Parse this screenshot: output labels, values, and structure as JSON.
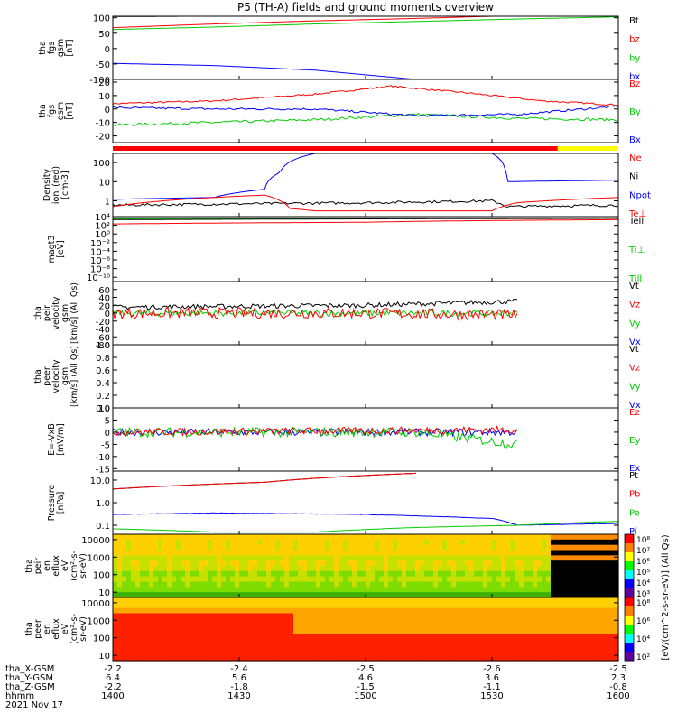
{
  "title": "P5 (TH-A) fields and ground moments overview",
  "colors": {
    "black": "#000000",
    "red": "#ff0000",
    "green": "#00cc00",
    "blue": "#0000ff",
    "yellow": "#ffff00"
  },
  "chart_data": [
    {
      "type": "line",
      "id": "p1",
      "ylabel": [
        "tha",
        "fgs",
        "gsm",
        "[nT]"
      ],
      "yticks": [
        {
          "v": 100,
          "t": "100"
        },
        {
          "v": 50,
          "t": "50"
        },
        {
          "v": 0,
          "t": "0"
        },
        {
          "v": -50,
          "t": "-50"
        },
        {
          "v": -100,
          "t": "-100"
        }
      ],
      "ylim": [
        -100,
        105
      ],
      "legend": [
        {
          "t": "Bt",
          "c": "black"
        },
        {
          "t": "bz",
          "c": "red"
        },
        {
          "t": "by",
          "c": "green"
        },
        {
          "t": "bx",
          "c": "blue"
        }
      ],
      "series": [
        {
          "c": "red",
          "x": [
            0,
            0.2,
            0.4,
            0.6,
            0.75
          ],
          "y": [
            68,
            80,
            90,
            98,
            105
          ]
        },
        {
          "c": "green",
          "x": [
            0,
            0.2,
            0.4,
            0.6,
            0.8,
            1
          ],
          "y": [
            62,
            70,
            80,
            88,
            96,
            103
          ]
        },
        {
          "c": "blue",
          "x": [
            0,
            0.2,
            0.4,
            0.5,
            0.6
          ],
          "y": [
            -48,
            -55,
            -70,
            -85,
            -100
          ]
        },
        {
          "c": "black",
          "x": [
            0,
            0.3,
            0.45
          ],
          "y": [
            104,
            106,
            106
          ]
        }
      ]
    },
    {
      "type": "line",
      "id": "p2",
      "ylabel": [
        "tha",
        "fgs",
        "gsm",
        "[nT]"
      ],
      "yticks": [
        {
          "v": 20,
          "t": "20"
        },
        {
          "v": 10,
          "t": "10"
        },
        {
          "v": 0,
          "t": "0"
        },
        {
          "v": -10,
          "t": "-10"
        },
        {
          "v": -20,
          "t": "-20"
        }
      ],
      "ylim": [
        -25,
        22
      ],
      "legend": [
        {
          "t": "Bz",
          "c": "red"
        },
        {
          "t": "By",
          "c": "green"
        },
        {
          "t": "Bx",
          "c": "blue"
        }
      ],
      "series": [
        {
          "c": "red",
          "x": [
            0,
            0.2,
            0.4,
            0.55,
            0.7,
            0.85,
            1
          ],
          "y": [
            4,
            6,
            11,
            17,
            12,
            6,
            3
          ],
          "noise": 0.6
        },
        {
          "c": "green",
          "x": [
            0,
            0.2,
            0.4,
            0.6,
            0.8,
            1
          ],
          "y": [
            -12,
            -10,
            -8,
            -4,
            -7,
            -8
          ],
          "noise": 1
        },
        {
          "c": "blue",
          "x": [
            0,
            0.2,
            0.4,
            0.6,
            0.8,
            1
          ],
          "y": [
            1,
            0,
            0,
            -5,
            -4,
            2
          ],
          "noise": 0.8
        }
      ]
    },
    {
      "type": "line",
      "id": "p3",
      "ylabel": [
        "Density",
        "ion_(red)",
        "[cm-3]"
      ],
      "ylog": true,
      "yticks": [
        {
          "v": 100,
          "t": "100"
        },
        {
          "v": 10,
          "t": "10"
        },
        {
          "v": 1,
          "t": "1"
        }
      ],
      "ylim": [
        0.15,
        300
      ],
      "legend": [
        {
          "t": "Ne",
          "c": "red"
        },
        {
          "t": "Ni",
          "c": "black"
        },
        {
          "t": "Npot",
          "c": "blue"
        },
        {
          "t": "Te⊥",
          "c": "red"
        }
      ],
      "series": [
        {
          "c": "blue",
          "x": [
            0,
            0.2,
            0.3,
            0.33,
            0.4,
            0.5,
            0.6,
            0.75,
            0.78,
            1
          ],
          "y": [
            1.2,
            1.5,
            4,
            30,
            300,
            300,
            300,
            300,
            10,
            12
          ]
        },
        {
          "c": "black",
          "x": [
            0,
            0.5,
            0.75,
            0.78,
            1
          ],
          "y": [
            0.6,
            0.8,
            1,
            0.5,
            0.6
          ],
          "noise": 0.15
        },
        {
          "c": "red",
          "x": [
            0,
            0.3,
            0.35,
            0.4,
            0.6,
            0.75,
            0.8,
            1
          ],
          "y": [
            0.5,
            2,
            0.4,
            0.3,
            0.3,
            0.3,
            0.8,
            1.5
          ]
        }
      ]
    },
    {
      "type": "line",
      "id": "p4",
      "ylabel": [
        "magt3",
        "[eV]"
      ],
      "ylog": true,
      "yticks": [
        {
          "v": 10000.0,
          "t": "10⁴"
        },
        {
          "v": 100.0,
          "t": "10²"
        },
        {
          "v": 1,
          "t": "10⁰"
        },
        {
          "v": 0.01,
          "t": "10⁻²"
        },
        {
          "v": 0.0001,
          "t": "10⁻⁴"
        },
        {
          "v": 1e-06,
          "t": "10⁻⁶"
        },
        {
          "v": 1e-08,
          "t": "10⁻⁸"
        },
        {
          "v": 1e-10,
          "t": "10⁻¹⁰"
        }
      ],
      "ylim": [
        1e-11,
        10000.0
      ],
      "legend": [
        {
          "t": "Tell",
          "c": "black"
        },
        {
          "t": "Ti⊥",
          "c": "green"
        },
        {
          "t": "Till",
          "c": "green"
        }
      ],
      "series": [
        {
          "c": "red",
          "x": [
            0,
            0.5,
            1
          ],
          "y": [
            200,
            500,
            2000
          ]
        },
        {
          "c": "green",
          "x": [
            0,
            1
          ],
          "y": [
            3000,
            5000
          ]
        },
        {
          "c": "black",
          "x": [
            0,
            1
          ],
          "y": [
            2000,
            4000
          ]
        }
      ]
    },
    {
      "type": "line",
      "id": "p5",
      "ylabel": [
        "tha",
        "peir",
        "velocity",
        "gsm",
        "[km/s] (All Qs)"
      ],
      "yticks": [
        {
          "v": 60,
          "t": "60"
        },
        {
          "v": 40,
          "t": "40"
        },
        {
          "v": 20,
          "t": "20"
        },
        {
          "v": 0,
          "t": "0"
        },
        {
          "v": -20,
          "t": "-20"
        },
        {
          "v": -40,
          "t": "-40"
        },
        {
          "v": -60,
          "t": "-60"
        },
        {
          "v": -80,
          "t": "-80"
        }
      ],
      "ylim": [
        -80,
        80
      ],
      "legend": [
        {
          "t": "Vt",
          "c": "black"
        },
        {
          "t": "Vz",
          "c": "red"
        },
        {
          "t": "Vy",
          "c": "green"
        },
        {
          "t": "Vx",
          "c": "blue"
        }
      ],
      "series": [
        {
          "c": "black",
          "x": [
            0,
            0.5,
            0.8
          ],
          "y": [
            15,
            20,
            30
          ],
          "noise": 6,
          "end": 0.8
        },
        {
          "c": "green",
          "x": [
            0,
            0.5,
            0.8
          ],
          "y": [
            0,
            0,
            0
          ],
          "noise": 8,
          "end": 0.8
        },
        {
          "c": "red",
          "x": [
            0,
            0.5,
            0.8
          ],
          "y": [
            0,
            0,
            -5
          ],
          "noise": 14,
          "end": 0.8
        }
      ]
    },
    {
      "type": "line",
      "id": "p6",
      "ylabel": [
        "tha",
        "peer",
        "velocity",
        "gsm",
        "[km/s] (All Qs)"
      ],
      "yticks": [
        {
          "v": 1.0,
          "t": "1.0"
        },
        {
          "v": 0.8,
          "t": "0.8"
        },
        {
          "v": 0.6,
          "t": "0.6"
        },
        {
          "v": 0.4,
          "t": "0.4"
        },
        {
          "v": 0.2,
          "t": "0.2"
        },
        {
          "v": 0.0,
          "t": "0.0"
        }
      ],
      "ylim": [
        0,
        1
      ],
      "legend": [
        {
          "t": "Vt",
          "c": "black"
        },
        {
          "t": "Vz",
          "c": "red"
        },
        {
          "t": "Vy",
          "c": "green"
        },
        {
          "t": "Vx",
          "c": "blue"
        }
      ],
      "series": []
    },
    {
      "type": "line",
      "id": "p7",
      "ylabel": [
        "E=-VxB",
        "[mV/m]"
      ],
      "yticks": [
        {
          "v": 10,
          "t": "10"
        },
        {
          "v": 5,
          "t": "5"
        },
        {
          "v": 0,
          "t": "0"
        },
        {
          "v": -5,
          "t": "-5"
        },
        {
          "v": -10,
          "t": "-10"
        },
        {
          "v": -15,
          "t": "-15"
        }
      ],
      "ylim": [
        -16,
        10
      ],
      "legend": [
        {
          "t": "Ez",
          "c": "red"
        },
        {
          "t": "Ey",
          "c": "green"
        },
        {
          "t": "Ex",
          "c": "blue"
        }
      ],
      "series": [
        {
          "c": "blue",
          "x": [
            0,
            0.8
          ],
          "y": [
            0,
            0
          ],
          "noise": 1.5,
          "end": 0.8
        },
        {
          "c": "green",
          "x": [
            0,
            0.6,
            0.8
          ],
          "y": [
            0,
            0,
            -5
          ],
          "noise": 2,
          "end": 0.8
        },
        {
          "c": "red",
          "x": [
            0,
            0.8
          ],
          "y": [
            0,
            1
          ],
          "noise": 1.5,
          "end": 0.8
        }
      ]
    },
    {
      "type": "line",
      "id": "p8",
      "ylabel": [
        "Pressure",
        "[nPa]"
      ],
      "ylog": true,
      "yticks": [
        {
          "v": 10,
          "t": "10.0"
        },
        {
          "v": 1,
          "t": "1.0"
        },
        {
          "v": 0.1,
          "t": "0.1"
        }
      ],
      "ylim": [
        0.04,
        25
      ],
      "legend": [
        {
          "t": "Pt",
          "c": "black"
        },
        {
          "t": "Pb",
          "c": "red"
        },
        {
          "t": "Pe",
          "c": "green"
        },
        {
          "t": "Pi",
          "c": "blue"
        }
      ],
      "series": [
        {
          "c": "black",
          "x": [
            0,
            0.3,
            0.6
          ],
          "y": [
            4,
            8,
            20
          ]
        },
        {
          "c": "red",
          "x": [
            0,
            0.3,
            0.6
          ],
          "y": [
            4,
            8,
            20
          ]
        },
        {
          "c": "blue",
          "x": [
            0,
            0.2,
            0.5,
            0.75,
            0.8,
            1
          ],
          "y": [
            0.3,
            0.35,
            0.3,
            0.2,
            0.1,
            0.12
          ],
          "noise": 0.02
        },
        {
          "c": "green",
          "x": [
            0,
            0.2,
            0.4,
            0.6,
            0.8,
            1
          ],
          "y": [
            0.07,
            0.05,
            0.05,
            0.08,
            0.1,
            0.15
          ]
        }
      ]
    },
    {
      "type": "heatmap",
      "id": "p9",
      "ylabel": [
        "tha",
        "peir",
        "en",
        "eflux",
        "eV",
        "(cm²-s-",
        "sr-eV)"
      ],
      "ylog": true,
      "yticks": [
        {
          "v": 10000,
          "t": "10000"
        },
        {
          "v": 1000,
          "t": "1000"
        },
        {
          "v": 100,
          "t": "100"
        },
        {
          "v": 10,
          "t": "10"
        }
      ],
      "ylim": [
        5,
        20000
      ],
      "colorbar": [
        "10⁸",
        "10⁷",
        "10⁶",
        "10⁵",
        "10⁴",
        "10³"
      ]
    },
    {
      "type": "heatmap",
      "id": "p10",
      "ylabel": [
        "tha",
        "peer",
        "en",
        "eflux",
        "eV",
        "(cm²-s-",
        "sr-eV)"
      ],
      "ylog": true,
      "yticks": [
        {
          "v": 10000,
          "t": "10000"
        },
        {
          "v": 1000,
          "t": "1000"
        },
        {
          "v": 100,
          "t": "100"
        },
        {
          "v": 10,
          "t": "10"
        }
      ],
      "ylim": [
        5,
        20000
      ],
      "colorbar": [
        "10⁸",
        "10⁶",
        "10⁴",
        "10²"
      ]
    }
  ],
  "colorbar_label": "[eV/(cm^2-s-sr-eV)] (All Qs)",
  "x_axis": {
    "rows": [
      {
        "label": "tha_X-GSM",
        "values": [
          "-2.2",
          "-2.4",
          "-2.5",
          "-2.6",
          "-2.5"
        ]
      },
      {
        "label": "tha_Y-GSM",
        "values": [
          "6.4",
          "5.6",
          "4.6",
          "3.6",
          "2.3"
        ]
      },
      {
        "label": "tha_Z-GSM",
        "values": [
          "-2.2",
          "-1.8",
          "-1.5",
          "-1.1",
          "-0.8"
        ]
      },
      {
        "label": "hhmm",
        "values": [
          "1400",
          "1430",
          "1500",
          "1530",
          "1600"
        ]
      }
    ],
    "date": "2021 Nov 17"
  }
}
